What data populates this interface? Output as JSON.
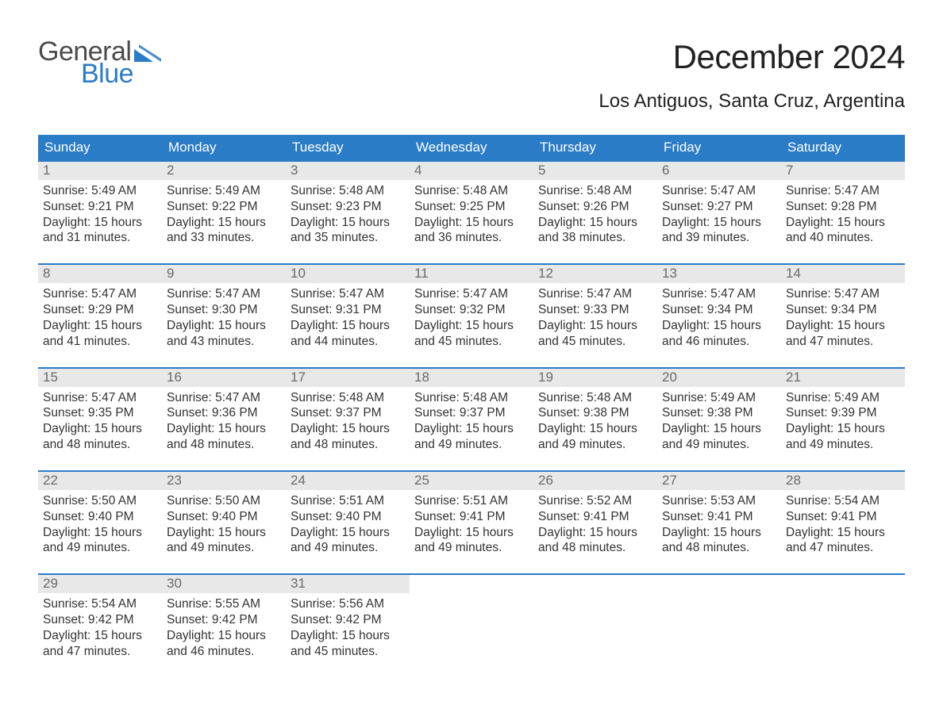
{
  "logo": {
    "word1": "General",
    "word2": "Blue",
    "word1_color": "#4a4a4a",
    "word2_color": "#2a7cc7",
    "tri_color": "#2a7cc7"
  },
  "title": "December 2024",
  "location": "Los Antiguos, Santa Cruz, Argentina",
  "colors": {
    "header_bg": "#2a7cc7",
    "header_text": "#ffffff",
    "week_rule": "#2a7cc7",
    "daynum_bg": "#e8e8e8",
    "daynum_text": "#6a6a6a",
    "body_text": "#333333",
    "background": "#ffffff"
  },
  "typography": {
    "title_fontsize": 42,
    "location_fontsize": 24,
    "dow_fontsize": 17,
    "daynum_fontsize": 17,
    "info_fontsize": 15.5,
    "font_family": "Arial"
  },
  "days_of_week": [
    "Sunday",
    "Monday",
    "Tuesday",
    "Wednesday",
    "Thursday",
    "Friday",
    "Saturday"
  ],
  "weeks": [
    [
      {
        "n": 1,
        "sr": "5:49 AM",
        "ss": "9:21 PM",
        "dh": 15,
        "dm": 31
      },
      {
        "n": 2,
        "sr": "5:49 AM",
        "ss": "9:22 PM",
        "dh": 15,
        "dm": 33
      },
      {
        "n": 3,
        "sr": "5:48 AM",
        "ss": "9:23 PM",
        "dh": 15,
        "dm": 35
      },
      {
        "n": 4,
        "sr": "5:48 AM",
        "ss": "9:25 PM",
        "dh": 15,
        "dm": 36
      },
      {
        "n": 5,
        "sr": "5:48 AM",
        "ss": "9:26 PM",
        "dh": 15,
        "dm": 38
      },
      {
        "n": 6,
        "sr": "5:47 AM",
        "ss": "9:27 PM",
        "dh": 15,
        "dm": 39
      },
      {
        "n": 7,
        "sr": "5:47 AM",
        "ss": "9:28 PM",
        "dh": 15,
        "dm": 40
      }
    ],
    [
      {
        "n": 8,
        "sr": "5:47 AM",
        "ss": "9:29 PM",
        "dh": 15,
        "dm": 41
      },
      {
        "n": 9,
        "sr": "5:47 AM",
        "ss": "9:30 PM",
        "dh": 15,
        "dm": 43
      },
      {
        "n": 10,
        "sr": "5:47 AM",
        "ss": "9:31 PM",
        "dh": 15,
        "dm": 44
      },
      {
        "n": 11,
        "sr": "5:47 AM",
        "ss": "9:32 PM",
        "dh": 15,
        "dm": 45
      },
      {
        "n": 12,
        "sr": "5:47 AM",
        "ss": "9:33 PM",
        "dh": 15,
        "dm": 45
      },
      {
        "n": 13,
        "sr": "5:47 AM",
        "ss": "9:34 PM",
        "dh": 15,
        "dm": 46
      },
      {
        "n": 14,
        "sr": "5:47 AM",
        "ss": "9:34 PM",
        "dh": 15,
        "dm": 47
      }
    ],
    [
      {
        "n": 15,
        "sr": "5:47 AM",
        "ss": "9:35 PM",
        "dh": 15,
        "dm": 48
      },
      {
        "n": 16,
        "sr": "5:47 AM",
        "ss": "9:36 PM",
        "dh": 15,
        "dm": 48
      },
      {
        "n": 17,
        "sr": "5:48 AM",
        "ss": "9:37 PM",
        "dh": 15,
        "dm": 48
      },
      {
        "n": 18,
        "sr": "5:48 AM",
        "ss": "9:37 PM",
        "dh": 15,
        "dm": 49
      },
      {
        "n": 19,
        "sr": "5:48 AM",
        "ss": "9:38 PM",
        "dh": 15,
        "dm": 49
      },
      {
        "n": 20,
        "sr": "5:49 AM",
        "ss": "9:38 PM",
        "dh": 15,
        "dm": 49
      },
      {
        "n": 21,
        "sr": "5:49 AM",
        "ss": "9:39 PM",
        "dh": 15,
        "dm": 49
      }
    ],
    [
      {
        "n": 22,
        "sr": "5:50 AM",
        "ss": "9:40 PM",
        "dh": 15,
        "dm": 49
      },
      {
        "n": 23,
        "sr": "5:50 AM",
        "ss": "9:40 PM",
        "dh": 15,
        "dm": 49
      },
      {
        "n": 24,
        "sr": "5:51 AM",
        "ss": "9:40 PM",
        "dh": 15,
        "dm": 49
      },
      {
        "n": 25,
        "sr": "5:51 AM",
        "ss": "9:41 PM",
        "dh": 15,
        "dm": 49
      },
      {
        "n": 26,
        "sr": "5:52 AM",
        "ss": "9:41 PM",
        "dh": 15,
        "dm": 48
      },
      {
        "n": 27,
        "sr": "5:53 AM",
        "ss": "9:41 PM",
        "dh": 15,
        "dm": 48
      },
      {
        "n": 28,
        "sr": "5:54 AM",
        "ss": "9:41 PM",
        "dh": 15,
        "dm": 47
      }
    ],
    [
      {
        "n": 29,
        "sr": "5:54 AM",
        "ss": "9:42 PM",
        "dh": 15,
        "dm": 47
      },
      {
        "n": 30,
        "sr": "5:55 AM",
        "ss": "9:42 PM",
        "dh": 15,
        "dm": 46
      },
      {
        "n": 31,
        "sr": "5:56 AM",
        "ss": "9:42 PM",
        "dh": 15,
        "dm": 45
      },
      null,
      null,
      null,
      null
    ]
  ],
  "labels": {
    "sunrise": "Sunrise:",
    "sunset": "Sunset:",
    "daylight_prefix": "Daylight:",
    "hours_word": "hours",
    "and_word": "and",
    "minutes_word": "minutes."
  }
}
